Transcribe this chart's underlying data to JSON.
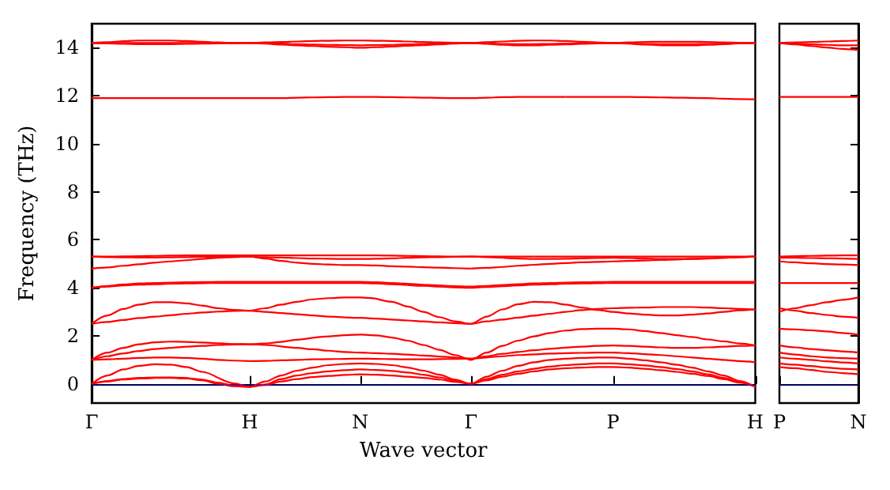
{
  "chart_data": [
    {
      "type": "line",
      "xlabel": "Wave vector",
      "ylabel": "Frequency (THz)",
      "marker": "none",
      "line_style": "solid",
      "grid": false,
      "categories": [
        "Γ",
        null,
        null,
        null,
        null,
        null,
        null,
        null,
        null,
        null,
        "H",
        null,
        null,
        null,
        null,
        null,
        null,
        "N",
        null,
        null,
        null,
        null,
        null,
        null,
        "Γ",
        null,
        null,
        null,
        null,
        null,
        null,
        null,
        null,
        "P",
        null,
        null,
        null,
        null,
        null,
        null,
        null,
        null,
        "H"
      ],
      "ylim": [
        -0.8,
        15
      ],
      "yticks": [
        0,
        2,
        4,
        6,
        8,
        10,
        12,
        14
      ],
      "ref_lines": [
        {
          "axis": "y",
          "value": 0,
          "color": "#0000ff",
          "line_style": "dotted"
        }
      ],
      "series": [
        {
          "color": "#ff0000",
          "values": [
            0,
            0.1,
            0.18,
            0.22,
            0.25,
            null,
            null,
            null,
            null,
            null,
            null,
            null,
            null,
            null,
            null,
            null,
            null,
            null,
            null,
            null,
            null,
            null,
            null,
            null,
            null,
            null,
            null,
            null,
            null,
            null,
            null,
            null,
            null,
            null,
            null,
            null,
            null,
            null,
            null,
            null,
            null,
            null,
            null
          ]
        },
        {
          "color": "#ff0000",
          "values": [
            null,
            null,
            null,
            null,
            0.25,
            0.25,
            0.22,
            0.15,
            0.0,
            -0.1,
            -0.12,
            -0.05,
            0.1,
            0.2,
            0.28,
            0.33,
            0.37,
            0.4,
            0.38,
            0.35,
            0.3,
            0.25,
            0.18,
            0.08,
            0,
            0.15,
            0.3,
            0.42,
            0.52,
            0.6,
            0.65,
            0.68,
            0.7,
            0.7,
            0.68,
            0.63,
            0.57,
            0.5,
            0.42,
            0.33,
            0.2,
            0.05,
            -0.12
          ]
        },
        {
          "color": "#ff0000",
          "values": [
            0,
            0.12,
            0.2,
            0.25,
            0.27,
            0.27,
            0.25,
            null,
            null,
            null,
            null,
            null,
            null,
            null,
            null,
            null,
            null,
            null,
            null,
            null,
            null,
            null,
            null,
            null,
            null,
            null,
            null,
            null,
            null,
            null,
            null,
            null,
            null,
            null,
            null,
            null,
            null,
            null,
            null,
            null,
            null,
            null,
            null
          ]
        },
        {
          "color": "#ff0000",
          "values": [
            null,
            null,
            null,
            null,
            null,
            null,
            0.25,
            0.18,
            0.05,
            -0.08,
            -0.12,
            -0.02,
            0.2,
            0.35,
            0.45,
            0.52,
            0.57,
            0.6,
            0.58,
            0.54,
            0.47,
            0.38,
            0.27,
            0.13,
            0,
            0.2,
            0.38,
            0.52,
            0.63,
            0.72,
            0.78,
            0.82,
            0.85,
            0.85,
            0.82,
            0.77,
            0.7,
            0.62,
            0.52,
            0.4,
            0.25,
            0.08,
            -0.12
          ]
        },
        {
          "color": "#ff0000",
          "values": [
            0,
            0.35,
            0.6,
            0.75,
            0.82,
            0.8,
            0.7,
            0.5,
            0.25,
            null,
            null,
            null,
            null,
            null,
            null,
            null,
            null,
            null,
            null,
            null,
            null,
            null,
            null,
            null,
            null,
            null,
            null,
            null,
            null,
            null,
            null,
            null,
            null,
            null,
            null,
            null,
            null,
            null,
            null,
            null,
            null,
            null,
            null
          ]
        },
        {
          "color": "#ff0000",
          "values": [
            null,
            null,
            null,
            null,
            null,
            null,
            null,
            null,
            0.25,
            0.02,
            -0.12,
            0.1,
            0.35,
            0.55,
            0.68,
            0.78,
            0.83,
            0.85,
            0.83,
            0.78,
            0.68,
            0.55,
            0.38,
            0.18,
            0,
            0.3,
            0.55,
            0.75,
            0.9,
            1.0,
            1.05,
            1.08,
            1.1,
            1.1,
            1.05,
            0.98,
            0.9,
            0.8,
            0.68,
            0.52,
            0.35,
            0.12,
            -0.12
          ]
        },
        {
          "color": "#ff0000",
          "values": [
            1.0,
            1.02,
            1.05,
            1.08,
            1.1,
            1.1,
            1.08,
            1.05,
            1.0,
            0.97,
            0.95,
            null,
            null,
            null,
            null,
            null,
            null,
            null,
            null,
            null,
            null,
            null,
            null,
            null,
            null,
            null,
            null,
            null,
            null,
            null,
            null,
            null,
            null,
            null,
            null,
            null,
            null,
            null,
            null,
            null,
            null,
            null,
            null
          ]
        },
        {
          "color": "#ff0000",
          "values": [
            null,
            null,
            null,
            null,
            null,
            null,
            null,
            null,
            null,
            null,
            0.95,
            0.96,
            0.98,
            1.0,
            1.02,
            1.03,
            1.04,
            1.05,
            1.04,
            1.03,
            1.02,
            1.02,
            1.03,
            1.04,
            1.05,
            1.1,
            1.15,
            1.2,
            1.23,
            1.26,
            1.28,
            1.29,
            1.3,
            1.3,
            1.28,
            1.24,
            1.2,
            1.15,
            1.1,
            1.05,
            1.0,
            0.95,
            0.9
          ]
        },
        {
          "color": "#ff0000",
          "values": [
            1.0,
            1.15,
            1.27,
            1.37,
            1.45,
            1.5,
            1.55,
            1.58,
            1.62,
            1.64,
            1.65,
            1.62,
            1.56,
            null,
            null,
            null,
            null,
            null,
            null,
            null,
            null,
            null,
            null,
            null,
            null,
            null,
            null,
            null,
            null,
            null,
            null,
            null,
            null,
            null,
            null,
            null,
            null,
            null,
            null,
            null,
            null,
            null,
            null
          ]
        },
        {
          "color": "#ff0000",
          "values": [
            null,
            null,
            null,
            null,
            null,
            null,
            null,
            null,
            null,
            null,
            null,
            null,
            1.56,
            1.5,
            1.44,
            1.38,
            1.33,
            1.3,
            1.28,
            1.25,
            1.22,
            1.18,
            1.14,
            1.1,
            1.05,
            1.15,
            1.25,
            1.33,
            1.4,
            1.46,
            1.51,
            1.55,
            1.58,
            1.6,
            1.58,
            1.55,
            1.52,
            1.5,
            1.5,
            1.52,
            1.55,
            1.58,
            1.6
          ]
        },
        {
          "color": "#ff0000",
          "values": [
            1.0,
            1.3,
            1.5,
            1.65,
            1.73,
            1.76,
            1.75,
            1.72,
            1.69,
            1.66,
            1.65,
            1.68,
            1.75,
            1.84,
            1.92,
            null,
            null,
            null,
            null,
            null,
            null,
            null,
            null,
            null,
            null,
            null,
            null,
            null,
            null,
            null,
            null,
            null,
            null,
            null,
            null,
            null,
            null,
            null,
            null,
            null,
            null,
            null,
            null
          ]
        },
        {
          "color": "#ff0000",
          "values": [
            null,
            null,
            null,
            null,
            null,
            null,
            null,
            null,
            null,
            null,
            null,
            null,
            null,
            null,
            1.92,
            1.98,
            2.03,
            2.05,
            2.02,
            1.93,
            1.8,
            1.62,
            1.42,
            1.2,
            1.0,
            1.3,
            1.58,
            1.8,
            1.98,
            2.12,
            2.22,
            2.28,
            2.3,
            2.3,
            2.27,
            2.2,
            2.12,
            2.03,
            1.95,
            1.85,
            1.77,
            1.68,
            1.6
          ]
        },
        {
          "color": "#ff0000",
          "values": [
            2.5,
            2.58,
            2.66,
            2.74,
            2.8,
            2.86,
            2.92,
            2.97,
            3.01,
            3.04,
            3.05,
            3.0,
            2.95,
            2.9,
            2.85,
            2.8,
            2.77,
            null,
            null,
            null,
            null,
            null,
            null,
            null,
            null,
            null,
            null,
            null,
            null,
            null,
            null,
            null,
            null,
            null,
            null,
            null,
            null,
            null,
            null,
            null,
            null,
            null,
            null
          ]
        },
        {
          "color": "#ff0000",
          "values": [
            null,
            null,
            null,
            null,
            null,
            null,
            null,
            null,
            null,
            null,
            null,
            null,
            null,
            null,
            null,
            null,
            2.77,
            2.75,
            2.72,
            2.68,
            2.64,
            2.6,
            2.56,
            2.53,
            2.5,
            2.6,
            2.68,
            2.76,
            2.84,
            2.92,
            3.0,
            3.07,
            3.12,
            3.15,
            3.17,
            3.18,
            3.2,
            3.2,
            3.2,
            3.18,
            3.15,
            3.12,
            3.1
          ]
        },
        {
          "color": "#ff0000",
          "values": [
            2.5,
            2.85,
            3.12,
            3.3,
            3.4,
            3.4,
            3.35,
            3.26,
            3.15,
            3.08,
            3.05,
            3.15,
            3.3,
            3.42,
            3.52,
            3.57,
            3.6,
            3.6,
            3.55,
            null,
            null,
            null,
            null,
            null,
            null,
            null,
            null,
            null,
            null,
            null,
            null,
            null,
            null,
            null,
            null,
            null,
            null,
            null,
            null,
            null,
            null,
            null,
            null
          ]
        },
        {
          "color": "#ff0000",
          "values": [
            null,
            null,
            null,
            null,
            null,
            null,
            null,
            null,
            null,
            null,
            null,
            null,
            null,
            null,
            null,
            null,
            null,
            null,
            3.55,
            3.42,
            3.22,
            3.0,
            2.78,
            2.6,
            2.5,
            2.8,
            3.1,
            3.32,
            3.42,
            3.4,
            3.3,
            3.18,
            3.08,
            3.0,
            2.93,
            2.88,
            2.85,
            2.85,
            2.88,
            2.93,
            3.0,
            3.06,
            3.1
          ]
        },
        {
          "color": "#ff0000",
          "values": [
            4.0,
            4.05,
            4.1,
            4.13,
            4.15,
            4.17,
            4.18,
            4.19,
            4.2,
            4.2,
            4.2,
            4.2,
            4.2,
            4.2,
            4.2,
            4.2,
            4.2,
            4.2,
            4.18,
            4.15,
            4.12,
            null,
            null,
            null,
            null,
            null,
            null,
            null,
            null,
            null,
            null,
            null,
            null,
            null,
            null,
            null,
            null,
            null,
            null,
            null,
            null,
            null,
            null
          ]
        },
        {
          "color": "#ff0000",
          "values": [
            null,
            null,
            null,
            null,
            null,
            null,
            null,
            null,
            null,
            null,
            null,
            null,
            null,
            null,
            null,
            null,
            null,
            null,
            null,
            null,
            4.12,
            4.08,
            4.05,
            4.02,
            4.0,
            4.03,
            4.07,
            4.1,
            4.13,
            4.15,
            4.17,
            4.18,
            4.19,
            4.2,
            4.2,
            4.2,
            4.2,
            4.2,
            4.2,
            4.2,
            4.2,
            4.2,
            4.2
          ]
        },
        {
          "color": "#ff0000",
          "values": [
            4.0,
            4.08,
            4.14,
            4.18,
            4.2,
            4.22,
            4.23,
            4.24,
            4.25,
            4.25,
            4.25,
            4.25,
            4.25,
            4.25,
            4.25,
            4.25,
            4.25,
            4.25,
            4.23,
            4.2,
            4.17,
            4.13,
            4.1,
            null,
            null,
            null,
            null,
            null,
            null,
            null,
            null,
            null,
            null,
            null,
            null,
            null,
            null,
            null,
            null,
            null,
            null,
            null,
            null
          ]
        },
        {
          "color": "#ff0000",
          "values": [
            null,
            null,
            null,
            null,
            null,
            null,
            null,
            null,
            null,
            null,
            null,
            null,
            null,
            null,
            null,
            null,
            null,
            null,
            null,
            null,
            null,
            null,
            4.1,
            4.07,
            4.05,
            4.08,
            4.12,
            4.15,
            4.18,
            4.2,
            4.22,
            4.23,
            4.24,
            4.25,
            4.25,
            4.25,
            4.25,
            4.25,
            4.25,
            4.25,
            4.25,
            4.25,
            4.25
          ]
        },
        {
          "color": "#ff0000",
          "values": [
            4.8,
            4.85,
            4.92,
            4.98,
            5.05,
            5.1,
            5.15,
            5.2,
            5.25,
            5.28,
            5.3,
            5.22,
            5.12,
            5.05,
            5.0,
            4.97,
            4.95,
            4.95,
            4.93,
            4.9,
            4.88,
            4.86,
            4.84,
            4.82,
            4.8,
            null,
            null,
            null,
            null,
            null,
            null,
            null,
            null,
            null,
            null,
            null,
            null,
            null,
            null,
            null,
            null,
            null,
            null
          ]
        },
        {
          "color": "#ff0000",
          "values": [
            null,
            null,
            null,
            null,
            null,
            null,
            null,
            null,
            null,
            null,
            null,
            null,
            null,
            null,
            null,
            null,
            null,
            null,
            null,
            null,
            null,
            null,
            null,
            null,
            4.8,
            4.83,
            4.87,
            4.92,
            4.96,
            5.0,
            5.03,
            5.06,
            5.08,
            5.1,
            5.12,
            5.14,
            5.16,
            5.18,
            5.2,
            5.22,
            5.25,
            5.28,
            5.3
          ]
        },
        {
          "color": "#ff0000",
          "values": [
            5.3,
            5.28,
            5.27,
            5.26,
            5.26,
            5.27,
            5.28,
            5.29,
            5.3,
            5.3,
            5.3,
            5.28,
            5.26,
            5.24,
            5.22,
            5.21,
            5.2,
            5.2,
            5.21,
            5.23,
            5.25,
            5.27,
            5.28,
            5.29,
            5.3,
            5.28,
            5.25,
            null,
            null,
            null,
            null,
            null,
            null,
            null,
            null,
            null,
            null,
            null,
            null,
            null,
            null,
            null,
            null
          ]
        },
        {
          "color": "#ff0000",
          "values": [
            null,
            null,
            null,
            null,
            null,
            null,
            null,
            null,
            null,
            null,
            null,
            null,
            null,
            null,
            null,
            null,
            null,
            null,
            null,
            null,
            null,
            null,
            null,
            null,
            null,
            null,
            5.25,
            5.22,
            5.2,
            5.2,
            5.21,
            5.23,
            5.24,
            5.25,
            5.24,
            5.22,
            5.2,
            5.2,
            5.21,
            5.23,
            5.25,
            5.28,
            5.3
          ]
        },
        {
          "color": "#ff0000",
          "values": [
            5.3,
            5.3,
            5.31,
            5.32,
            5.33,
            5.34,
            5.35,
            5.35,
            5.35,
            5.35,
            5.35,
            5.35,
            5.35,
            5.35,
            5.35,
            5.35,
            5.35,
            5.35,
            5.35,
            5.34,
            5.33,
            5.32,
            5.31,
            5.3,
            5.3,
            5.3,
            5.3,
            5.3,
            5.3,
            null,
            null,
            null,
            null,
            null,
            null,
            null,
            null,
            null,
            null,
            null,
            null,
            null,
            null
          ]
        },
        {
          "color": "#ff0000",
          "values": [
            null,
            null,
            null,
            null,
            null,
            null,
            null,
            null,
            null,
            null,
            null,
            null,
            null,
            null,
            null,
            null,
            null,
            null,
            null,
            null,
            null,
            null,
            null,
            null,
            null,
            null,
            null,
            null,
            5.3,
            5.3,
            5.3,
            5.3,
            5.3,
            5.3,
            5.3,
            5.3,
            5.3,
            5.3,
            5.3,
            5.3,
            5.3,
            5.3,
            5.3
          ]
        },
        {
          "color": "#ff0000",
          "values": [
            11.9,
            11.9,
            11.9,
            11.9,
            11.9,
            11.9,
            11.9,
            11.9,
            11.9,
            11.9,
            11.9,
            11.9,
            11.9,
            11.92,
            11.93,
            11.94,
            11.95,
            11.95,
            11.95,
            11.94,
            11.93,
            11.92,
            11.91,
            11.9,
            11.9,
            11.92,
            11.94,
            11.95,
            11.95,
            11.95,
            11.95,
            null,
            null,
            null,
            null,
            null,
            null,
            null,
            null,
            null,
            null,
            null,
            null
          ]
        },
        {
          "color": "#ff0000",
          "values": [
            null,
            null,
            null,
            null,
            null,
            null,
            null,
            null,
            null,
            null,
            null,
            null,
            null,
            null,
            null,
            null,
            null,
            null,
            null,
            null,
            null,
            null,
            null,
            null,
            null,
            null,
            null,
            null,
            null,
            null,
            11.95,
            11.95,
            11.95,
            11.95,
            11.95,
            11.94,
            11.93,
            11.92,
            11.91,
            11.9,
            11.88,
            11.86,
            11.85
          ]
        },
        {
          "color": "#ff0000",
          "values": [
            14.2,
            14.23,
            14.27,
            14.3,
            14.3,
            14.3,
            14.28,
            14.25,
            14.22,
            14.2,
            14.2,
            14.22,
            14.24,
            14.26,
            14.28,
            14.29,
            14.3,
            14.3,
            14.29,
            14.28,
            14.26,
            14.24,
            14.22,
            14.21,
            14.2,
            14.23,
            14.26,
            14.29,
            14.3,
            14.3,
            14.28,
            14.25,
            14.22,
            null,
            null,
            null,
            null,
            null,
            null,
            null,
            null,
            null,
            null
          ]
        },
        {
          "color": "#ff0000",
          "values": [
            null,
            null,
            null,
            null,
            null,
            null,
            null,
            null,
            null,
            null,
            null,
            null,
            null,
            null,
            null,
            null,
            null,
            null,
            null,
            null,
            null,
            null,
            null,
            null,
            null,
            null,
            null,
            null,
            null,
            null,
            null,
            null,
            14.22,
            14.2,
            14.22,
            14.24,
            14.25,
            14.25,
            14.25,
            14.24,
            14.22,
            14.21,
            14.2
          ]
        },
        {
          "color": "#ff0000",
          "values": [
            14.2,
            14.2,
            14.2,
            14.2,
            14.2,
            14.2,
            14.2,
            14.2,
            14.2,
            14.2,
            14.2,
            14.19,
            14.17,
            14.15,
            14.13,
            14.12,
            14.11,
            14.1,
            14.11,
            14.12,
            14.14,
            14.16,
            14.18,
            14.19,
            14.2,
            14.18,
            14.16,
            14.15,
            14.15,
            14.16,
            14.17,
            14.18,
            14.19,
            14.2,
            14.18,
            null,
            null,
            null,
            null,
            null,
            null,
            null,
            null
          ]
        },
        {
          "color": "#ff0000",
          "values": [
            null,
            null,
            null,
            null,
            null,
            null,
            null,
            null,
            null,
            null,
            null,
            null,
            null,
            null,
            null,
            null,
            null,
            null,
            null,
            null,
            null,
            null,
            null,
            null,
            null,
            null,
            null,
            null,
            null,
            null,
            null,
            null,
            null,
            null,
            14.18,
            14.16,
            14.15,
            14.15,
            14.15,
            14.16,
            14.17,
            14.19,
            14.2
          ]
        },
        {
          "color": "#ff0000",
          "values": [
            14.2,
            14.18,
            14.16,
            14.15,
            14.15,
            14.15,
            14.16,
            14.17,
            14.18,
            14.19,
            14.2,
            14.17,
            14.13,
            14.1,
            14.07,
            14.04,
            14.02,
            14.0,
            14.02,
            14.05,
            14.08,
            14.11,
            14.14,
            14.17,
            14.2,
            14.16,
            14.12,
            14.1,
            14.1,
            14.12,
            14.14,
            14.16,
            14.18,
            14.2,
            14.17,
            14.13,
            14.1,
            null,
            null,
            null,
            null,
            null,
            null
          ]
        },
        {
          "color": "#ff0000",
          "values": [
            null,
            null,
            null,
            null,
            null,
            null,
            null,
            null,
            null,
            null,
            null,
            null,
            null,
            null,
            null,
            null,
            null,
            null,
            null,
            null,
            null,
            null,
            null,
            null,
            null,
            null,
            null,
            null,
            null,
            null,
            null,
            null,
            null,
            null,
            null,
            null,
            14.1,
            14.1,
            14.1,
            14.12,
            14.15,
            14.18,
            14.2
          ]
        }
      ]
    },
    {
      "type": "line",
      "marker": "none",
      "line_style": "solid",
      "grid": false,
      "tick_labels": "x",
      "categories": [
        "P",
        null,
        null,
        null,
        null,
        "N"
      ],
      "ylim": [
        -0.8,
        15
      ],
      "yticks": [
        0,
        2,
        4,
        6,
        8,
        10,
        12,
        14
      ],
      "ref_lines": [
        {
          "axis": "y",
          "value": 0,
          "color": "#0000ff",
          "line_style": "dotted"
        }
      ],
      "series": [
        {
          "color": "#ff0000",
          "values": [
            0.7,
            0.65,
            0.58,
            0.5,
            0.45,
            0.4
          ]
        },
        {
          "color": "#ff0000",
          "values": [
            0.85,
            0.8,
            0.74,
            0.68,
            0.63,
            0.6
          ]
        },
        {
          "color": "#ff0000",
          "values": [
            1.1,
            1.05,
            1.0,
            0.94,
            0.89,
            0.85
          ]
        },
        {
          "color": "#ff0000",
          "values": [
            1.3,
            1.22,
            1.15,
            1.1,
            1.07,
            1.05
          ]
        },
        {
          "color": "#ff0000",
          "values": [
            1.6,
            1.52,
            1.45,
            1.4,
            1.35,
            1.3
          ]
        },
        {
          "color": "#ff0000",
          "values": [
            2.3,
            2.27,
            2.23,
            2.18,
            2.12,
            2.05
          ]
        },
        {
          "color": "#ff0000",
          "values": [
            3.15,
            3.05,
            2.95,
            2.87,
            2.8,
            2.75
          ]
        },
        {
          "color": "#ff0000",
          "values": [
            3.0,
            3.15,
            3.28,
            3.4,
            3.5,
            3.6
          ]
        },
        {
          "color": "#ff0000",
          "values": [
            4.2,
            4.2,
            4.2,
            4.2,
            4.2,
            4.2
          ]
        },
        {
          "color": "#ff0000",
          "values": [
            5.1,
            5.06,
            5.02,
            4.99,
            4.97,
            4.95
          ]
        },
        {
          "color": "#ff0000",
          "values": [
            5.25,
            5.25,
            5.24,
            5.23,
            5.22,
            5.2
          ]
        },
        {
          "color": "#ff0000",
          "values": [
            5.3,
            5.32,
            5.33,
            5.34,
            5.35,
            5.35
          ]
        },
        {
          "color": "#ff0000",
          "values": [
            11.95,
            11.95,
            11.95,
            11.95,
            11.95,
            11.95
          ]
        },
        {
          "color": "#ff0000",
          "values": [
            14.2,
            14.22,
            14.24,
            14.26,
            14.28,
            14.3
          ]
        },
        {
          "color": "#ff0000",
          "values": [
            14.2,
            14.17,
            14.14,
            14.12,
            14.1,
            14.1
          ]
        },
        {
          "color": "#ff0000",
          "values": [
            14.2,
            14.14,
            14.07,
            14.01,
            13.95,
            13.9
          ]
        }
      ]
    }
  ]
}
